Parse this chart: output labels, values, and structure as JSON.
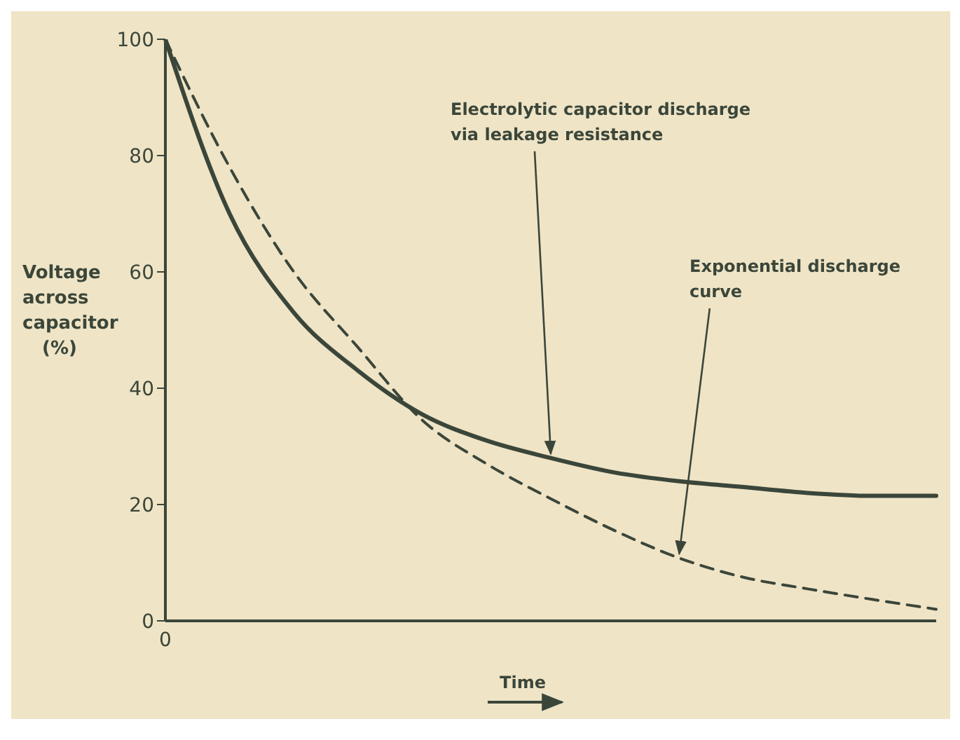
{
  "chart_data": {
    "type": "line",
    "xlabel": "Time",
    "ylabel": "Voltage across capacitor (%)",
    "categories": [
      "0",
      null,
      null,
      null,
      null,
      null,
      null,
      null,
      null,
      null,
      null,
      null,
      null
    ],
    "ylim": [
      0,
      100
    ],
    "yticks": [
      0,
      20,
      40,
      60,
      80,
      100
    ],
    "marker": "none",
    "annotations": [
      "Electrolytic capacitor discharge via leakage resistance",
      "Exponential discharge curve"
    ],
    "series": [
      {
        "color": "#3b463a",
        "line_style": "solid",
        "values": [
          100,
          70,
          53,
          43,
          35.5,
          31,
          28,
          25.5,
          24,
          23,
          22,
          21.5,
          21.5
        ]
      },
      {
        "color": "#3b463a",
        "line_style": "dashed",
        "values": [
          100,
          78,
          60,
          47,
          34.5,
          27,
          21,
          15.5,
          10.8,
          7.5,
          5.5,
          3.7,
          2
        ]
      }
    ]
  }
}
